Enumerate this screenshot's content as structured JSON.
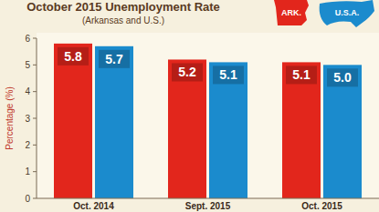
{
  "chart_data": {
    "type": "bar",
    "title": "October 2015 Unemployment Rate",
    "subtitle": "(Arkansas and U.S.)",
    "y_label": "Percentage (%)",
    "categories": [
      "Oct. 2014",
      "Sept. 2015",
      "Oct. 2015"
    ],
    "series": [
      {
        "name": "ARK.",
        "color": "#e2261c",
        "values": [
          5.8,
          5.2,
          5.1
        ]
      },
      {
        "name": "U.S.A.",
        "color": "#1b8bcd",
        "values": [
          5.7,
          5.1,
          5.0
        ],
        "value_labels": [
          "5.7",
          "5.1",
          "5.0"
        ]
      }
    ],
    "ylim": [
      0,
      6
    ],
    "yticks": [
      0,
      1,
      2,
      3,
      4,
      5,
      6
    ],
    "data_labels": true,
    "legend": "top-right",
    "grid": false
  }
}
